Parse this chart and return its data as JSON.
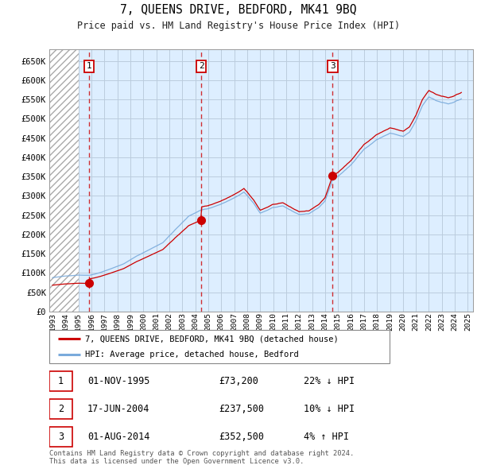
{
  "title": "7, QUEENS DRIVE, BEDFORD, MK41 9BQ",
  "subtitle": "Price paid vs. HM Land Registry's House Price Index (HPI)",
  "ylim": [
    0,
    680000
  ],
  "yticks": [
    0,
    50000,
    100000,
    150000,
    200000,
    250000,
    300000,
    350000,
    400000,
    450000,
    500000,
    550000,
    600000,
    650000
  ],
  "ytick_labels": [
    "£0",
    "£50K",
    "£100K",
    "£150K",
    "£200K",
    "£250K",
    "£300K",
    "£350K",
    "£400K",
    "£450K",
    "£500K",
    "£550K",
    "£600K",
    "£650K"
  ],
  "xlim_start": 1992.75,
  "xlim_end": 2025.4,
  "hatch_end": 1995.0,
  "sale_dates": [
    1995.833,
    2004.458,
    2014.583
  ],
  "sale_prices": [
    73200,
    237500,
    352500
  ],
  "sale_labels": [
    "1",
    "2",
    "3"
  ],
  "sale_color": "#cc0000",
  "hpi_color": "#7aabdc",
  "chart_bg": "#ddeeff",
  "hatch_bg": "#ffffff",
  "grid_color": "#bbccdd",
  "legend_sale_label": "7, QUEENS DRIVE, BEDFORD, MK41 9BQ (detached house)",
  "legend_hpi_label": "HPI: Average price, detached house, Bedford",
  "table_rows": [
    [
      "1",
      "01-NOV-1995",
      "£73,200",
      "22% ↓ HPI"
    ],
    [
      "2",
      "17-JUN-2004",
      "£237,500",
      "10% ↓ HPI"
    ],
    [
      "3",
      "01-AUG-2014",
      "£352,500",
      "4% ↑ HPI"
    ]
  ],
  "footnote": "Contains HM Land Registry data © Crown copyright and database right 2024.\nThis data is licensed under the Open Government Licence v3.0."
}
